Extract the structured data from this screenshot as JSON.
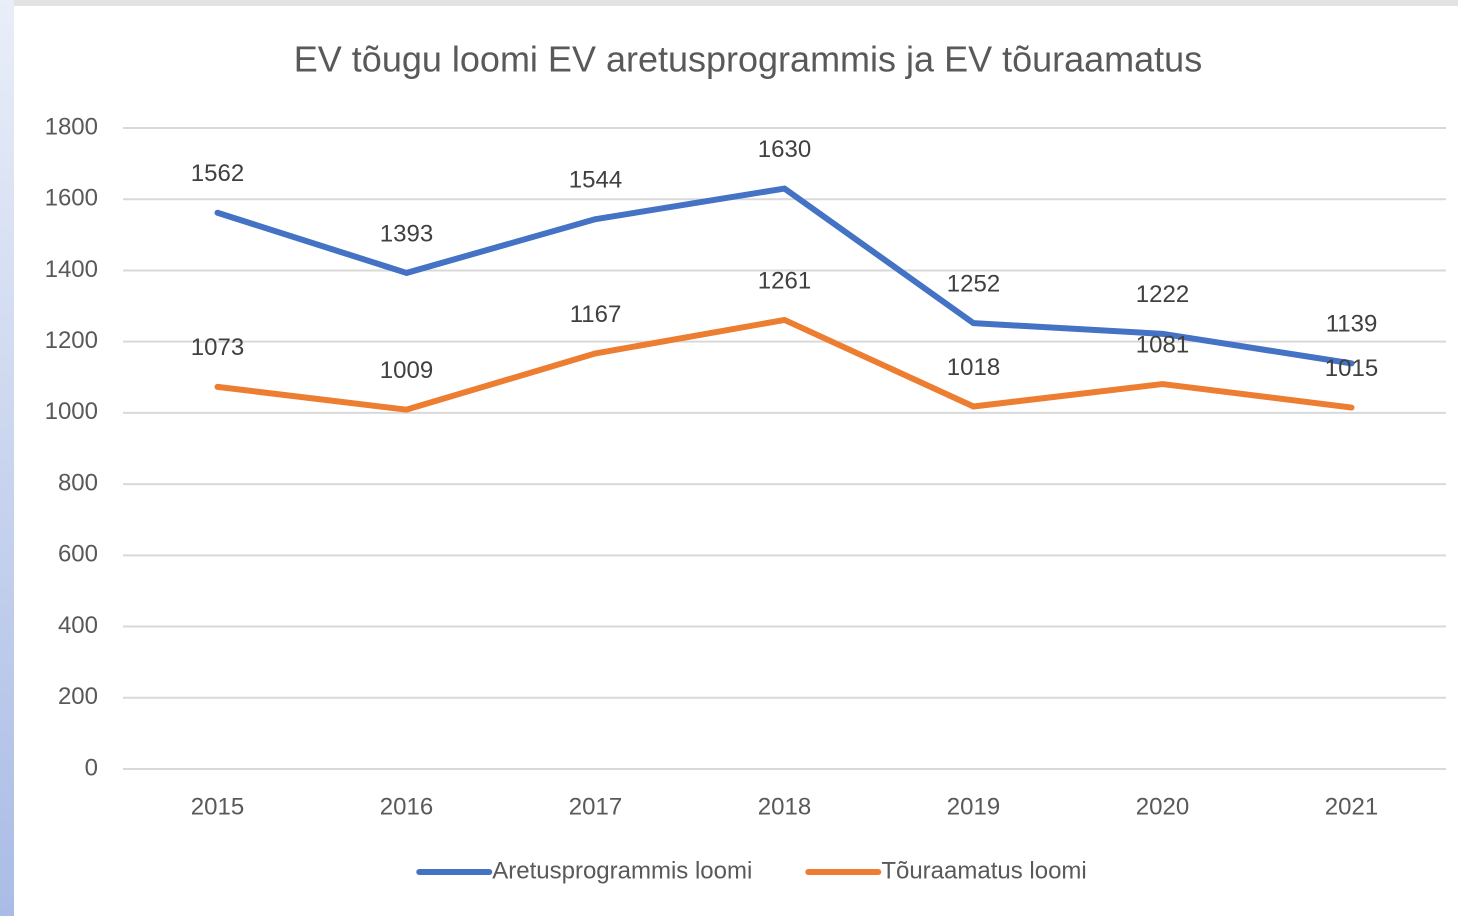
{
  "chart_data": {
    "type": "line",
    "title": "EV tõugu loomi EV aretusprogrammis ja EV tõuraamatus",
    "categories": [
      "2015",
      "2016",
      "2017",
      "2018",
      "2019",
      "2020",
      "2021"
    ],
    "series": [
      {
        "name": "Aretusprogrammis loomi",
        "color": "#4472c4",
        "values": [
          1562,
          1393,
          1544,
          1630,
          1252,
          1222,
          1139
        ]
      },
      {
        "name": "Tõuraamatus loomi",
        "color": "#ed7d31",
        "values": [
          1073,
          1009,
          1167,
          1261,
          1018,
          1081,
          1015
        ]
      }
    ],
    "ylim": [
      0,
      1800
    ],
    "yticks": [
      0,
      200,
      400,
      600,
      800,
      1000,
      1200,
      1400,
      1600,
      1800
    ],
    "grid": true,
    "legend": "bottom"
  }
}
